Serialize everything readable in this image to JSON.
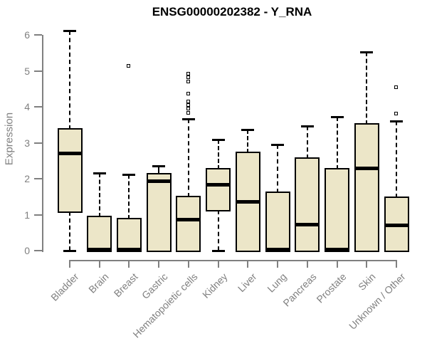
{
  "chart_data": {
    "type": "boxplot",
    "title": "ENSG00000202382 - Y_RNA",
    "xlabel": "",
    "ylabel": "Expression",
    "ylim": [
      0,
      6
    ],
    "y_ticks": [
      0,
      1,
      2,
      3,
      4,
      5,
      6
    ],
    "grid": false,
    "legend": "none",
    "categories": [
      "Bladder",
      "Brain",
      "Breast",
      "Gastric",
      "Hematopoietic cells",
      "Kidney",
      "Liver",
      "Lung",
      "Pancreas",
      "Prostate",
      "Skin",
      "Unknown / Other"
    ],
    "series": [
      {
        "name": "Bladder",
        "low": 0,
        "q1": 1.09,
        "median": 2.7,
        "q3": 3.37,
        "high": 6.12,
        "outliers": []
      },
      {
        "name": "Brain",
        "low": 0,
        "q1": 0,
        "median": 0.03,
        "q3": 0.93,
        "high": 2.16,
        "outliers": []
      },
      {
        "name": "Breast",
        "low": 0,
        "q1": 0,
        "median": 0.03,
        "q3": 0.87,
        "high": 2.12,
        "outliers": [
          5.13
        ]
      },
      {
        "name": "Gastric",
        "low": 0,
        "q1": 0,
        "median": 1.94,
        "q3": 2.12,
        "high": 2.36,
        "outliers": []
      },
      {
        "name": "Hematopoietic cells",
        "low": 0,
        "q1": 0,
        "median": 0.87,
        "q3": 1.49,
        "high": 3.66,
        "outliers": [
          3.84,
          3.96,
          4.05,
          4.14,
          4.36,
          4.71,
          4.82,
          4.93
        ]
      },
      {
        "name": "Kidney",
        "low": 0,
        "q1": 1.13,
        "median": 1.84,
        "q3": 2.26,
        "high": 3.08,
        "outliers": []
      },
      {
        "name": "Liver",
        "low": 0,
        "q1": 0,
        "median": 1.36,
        "q3": 2.72,
        "high": 3.37,
        "outliers": []
      },
      {
        "name": "Lung",
        "low": 0,
        "q1": 0,
        "median": 0.03,
        "q3": 1.6,
        "high": 2.95,
        "outliers": []
      },
      {
        "name": "Pancreas",
        "low": 0,
        "q1": 0,
        "median": 0.72,
        "q3": 2.55,
        "high": 3.47,
        "outliers": []
      },
      {
        "name": "Prostate",
        "low": 0,
        "q1": 0,
        "median": 0.03,
        "q3": 2.26,
        "high": 3.73,
        "outliers": []
      },
      {
        "name": "Skin",
        "low": 0,
        "q1": 0,
        "median": 2.28,
        "q3": 3.5,
        "high": 5.52,
        "outliers": []
      },
      {
        "name": "Unknown / Other",
        "low": 0,
        "q1": 0,
        "median": 0.71,
        "q3": 1.47,
        "high": 3.6,
        "outliers": [
          3.82,
          4.55
        ]
      }
    ],
    "colors": {
      "box_fill": "#ece6c8",
      "box_border": "#000000",
      "median": "#000000",
      "whisker": "#000000",
      "outlier": "#000000",
      "axis": "#808080",
      "tick_label": "#808080",
      "title": "#000000",
      "background": "#ffffff"
    }
  }
}
